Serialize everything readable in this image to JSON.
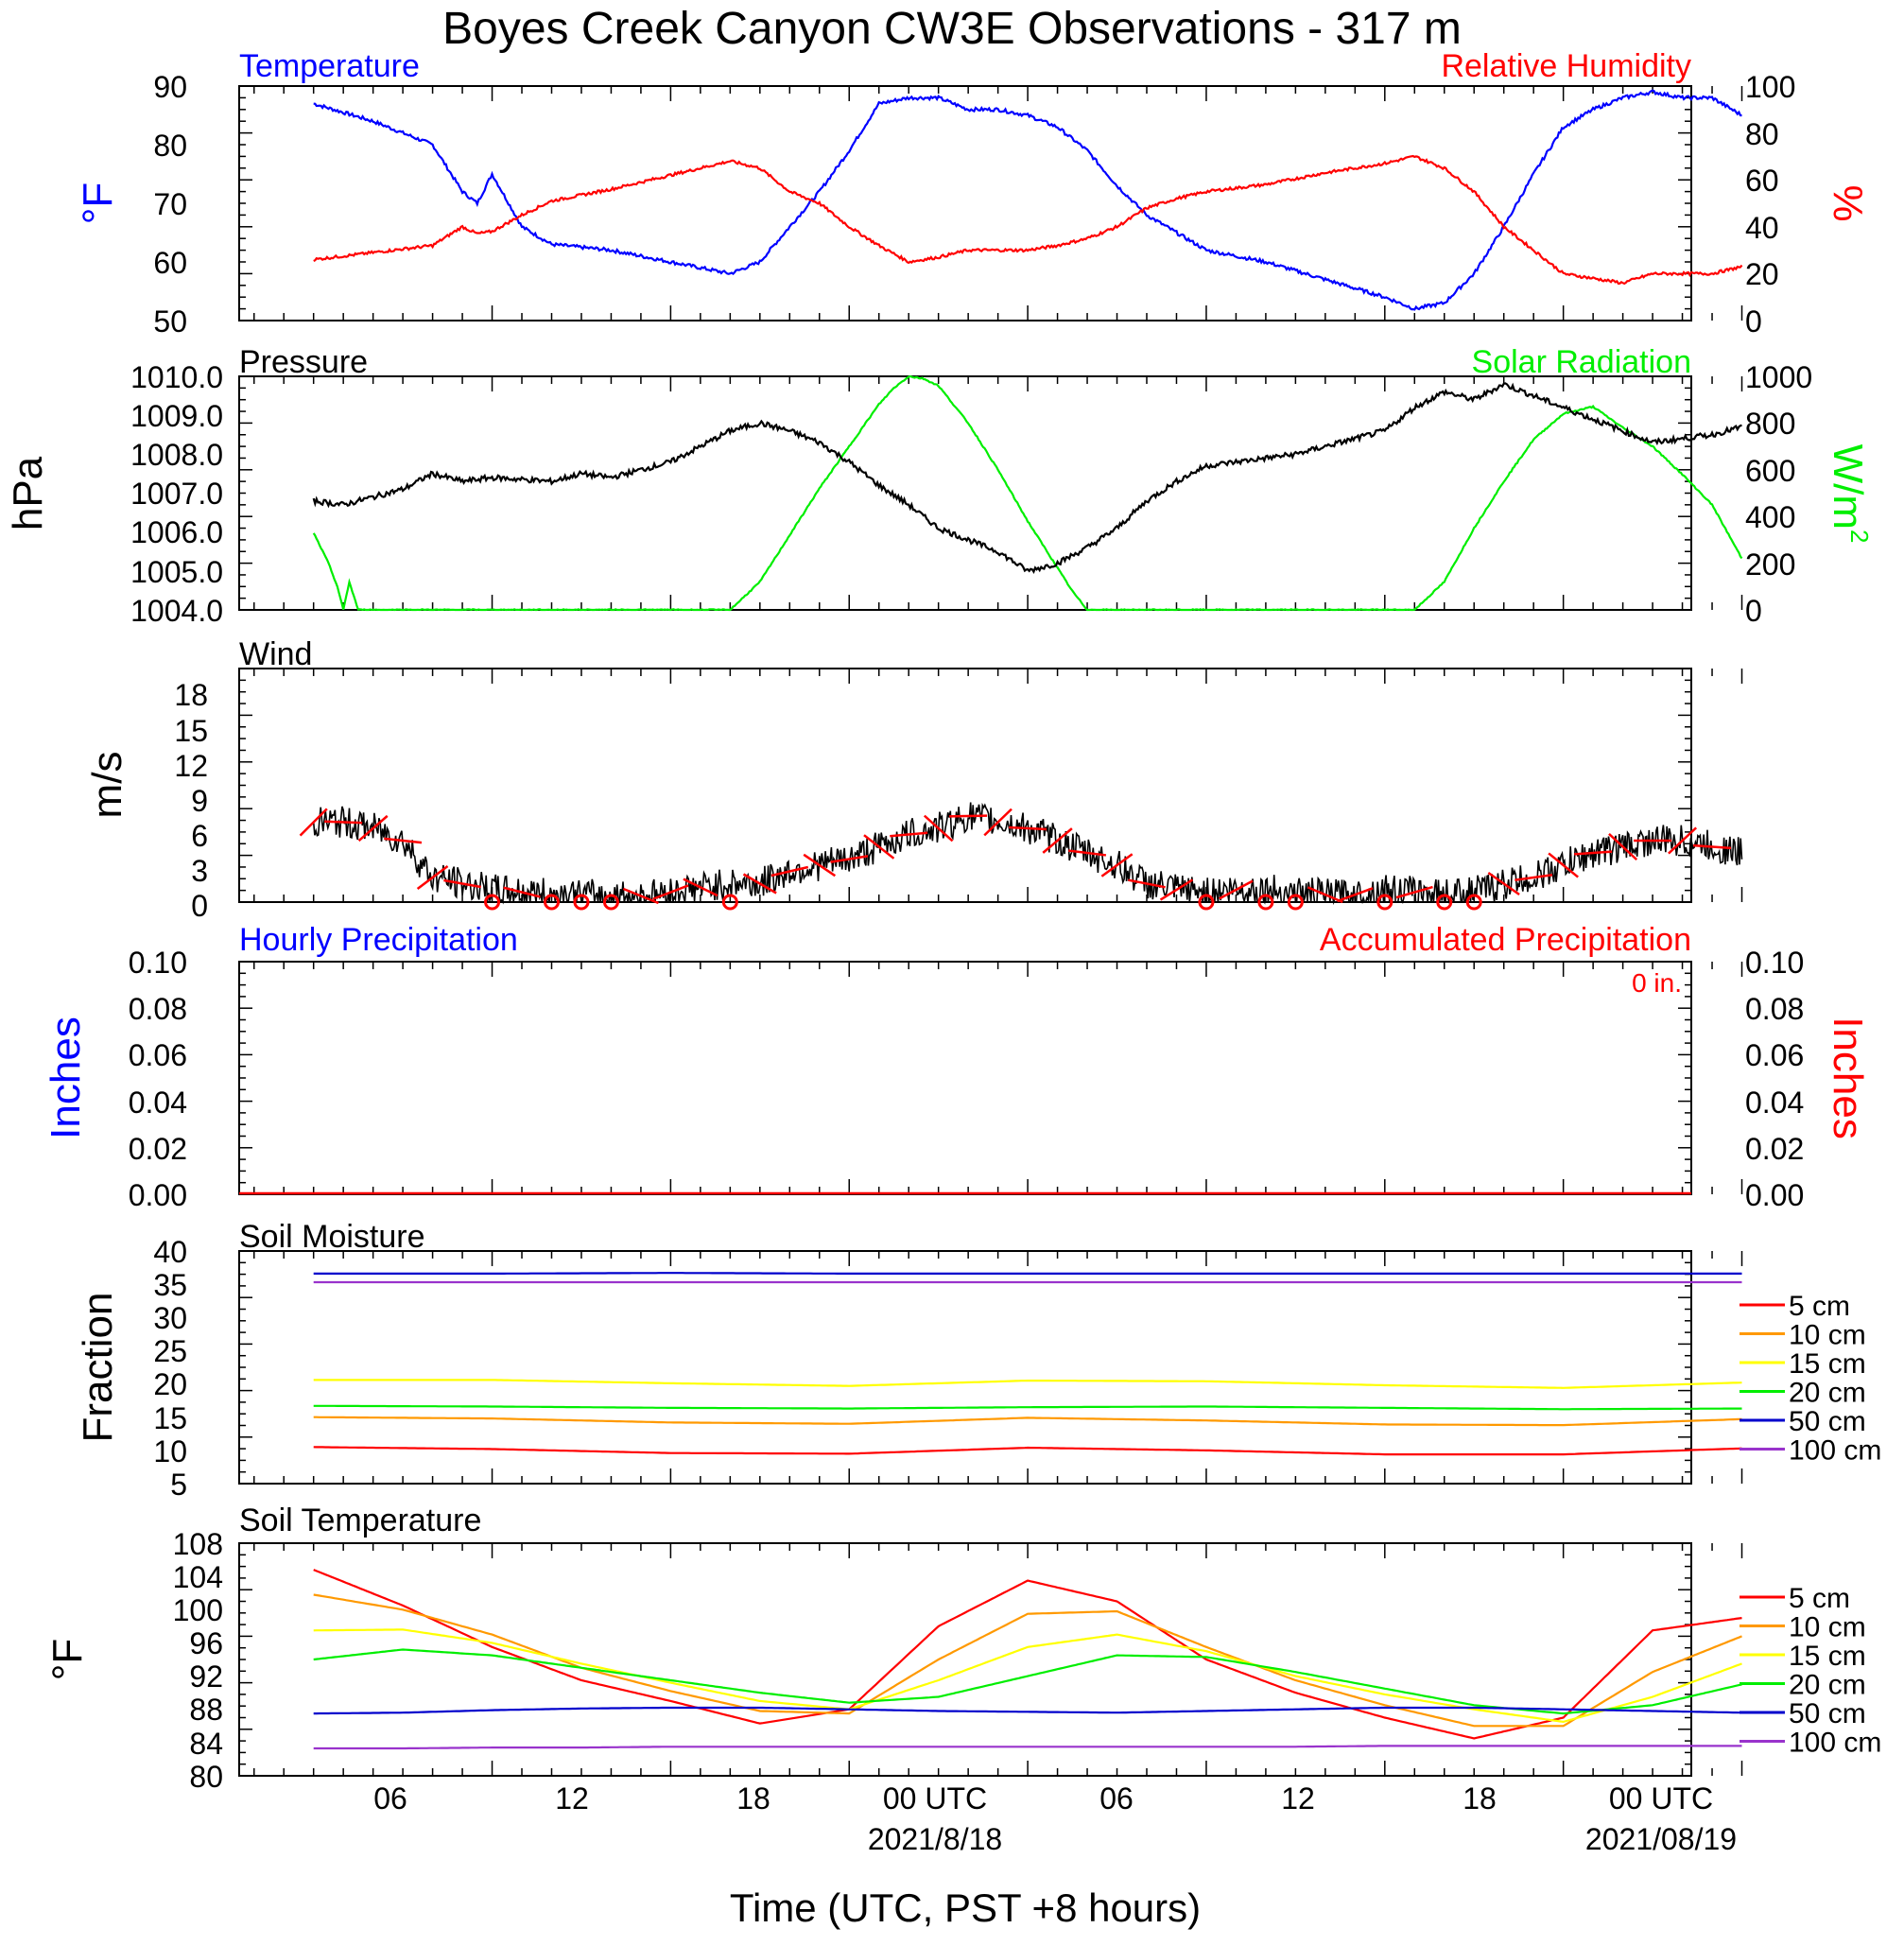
{
  "title": "Boyes Creek Canyon CW3E Observations - 317 m",
  "xlabel": "Time (UTC, PST +8 hours)",
  "x_ticks": [
    "06",
    "12",
    "18",
    "00 UTC",
    "06",
    "12",
    "18",
    "00 UTC"
  ],
  "x_dates": [
    "2021/8/18",
    "2021/08/19"
  ],
  "colors": {
    "blue": "#0000ff",
    "red": "#ff0000",
    "green": "#00ee00",
    "orange": "#ff9900",
    "yellow": "#ffff00",
    "navy": "#0000cc",
    "purple": "#9933cc",
    "black": "#000000"
  },
  "chart_data": [
    {
      "type": "line",
      "title_left": "Temperature",
      "title_right": "Relative Humidity",
      "ylabel_left": "°F",
      "ylabel_right": "%",
      "ylim": [
        50,
        90
      ],
      "ylim_right": [
        0,
        100
      ],
      "y_ticks": [
        "90",
        "80",
        "70",
        "60",
        "50"
      ],
      "y_ticks_right": [
        "100",
        "80",
        "60",
        "40",
        "20",
        "0"
      ],
      "x_hours": [
        0,
        2,
        4,
        5,
        5.5,
        6,
        7,
        8,
        10,
        12,
        14,
        15,
        16,
        17,
        18,
        19,
        20,
        21,
        22,
        23,
        24,
        25,
        26,
        27,
        28,
        29,
        30,
        32,
        34,
        36,
        37,
        38,
        39,
        40,
        41,
        42,
        43,
        44,
        45,
        46,
        47,
        48
      ],
      "series": [
        {
          "name": "Temperature",
          "axis": "left",
          "color": "blue",
          "values": [
            87,
            84,
            80,
            72,
            70,
            75,
            66,
            63,
            62,
            60,
            58,
            60,
            66,
            72,
            79,
            87,
            88,
            88,
            86,
            86,
            85,
            83,
            79,
            73,
            68,
            65,
            62,
            60,
            57,
            54,
            52,
            53,
            58,
            66,
            75,
            83,
            86,
            88,
            89,
            88,
            88,
            85
          ]
        },
        {
          "name": "Relative Humidity",
          "axis": "right",
          "color": "red",
          "values": [
            26,
            29,
            32,
            40,
            37,
            38,
            45,
            51,
            56,
            62,
            68,
            65,
            55,
            50,
            40,
            32,
            25,
            27,
            30,
            30,
            30,
            32,
            35,
            40,
            48,
            52,
            55,
            58,
            63,
            67,
            70,
            65,
            55,
            40,
            30,
            20,
            18,
            16,
            20,
            20,
            20,
            23
          ]
        }
      ]
    },
    {
      "type": "line",
      "title_left": "Pressure",
      "title_right": "Solar Radiation",
      "ylabel_left": "hPa",
      "ylabel_right": "W/m",
      "ylabel_right_sup": "2",
      "ylim": [
        1004.0,
        1010.0
      ],
      "ylim_right": [
        0,
        1000
      ],
      "y_ticks": [
        "1010.0",
        "1009.0",
        "1008.0",
        "1007.0",
        "1006.0",
        "1005.0",
        "1004.0"
      ],
      "y_ticks_right": [
        "1000",
        "800",
        "600",
        "400",
        "200",
        "0"
      ],
      "pressure": {
        "name": "Pressure",
        "color": "black",
        "x_hours": [
          0,
          1,
          3,
          4,
          5,
          6,
          8,
          9,
          10,
          12,
          14,
          15,
          16,
          17,
          18,
          19,
          20,
          21,
          22,
          23,
          24,
          25,
          26,
          27,
          28,
          29,
          30,
          31,
          32,
          33,
          34,
          35,
          36,
          37,
          38,
          39,
          40,
          41,
          42,
          43,
          44,
          45,
          46,
          47,
          48
        ],
        "values": [
          1006.8,
          1006.7,
          1007.1,
          1007.5,
          1007.3,
          1007.4,
          1007.3,
          1007.5,
          1007.4,
          1007.8,
          1008.6,
          1008.8,
          1008.6,
          1008.3,
          1007.8,
          1007.2,
          1006.7,
          1006.1,
          1005.8,
          1005.5,
          1005.0,
          1005.2,
          1005.6,
          1006.1,
          1006.8,
          1007.3,
          1007.7,
          1007.8,
          1007.9,
          1008.0,
          1008.2,
          1008.4,
          1008.6,
          1009.2,
          1009.6,
          1009.4,
          1009.8,
          1009.5,
          1009.2,
          1008.9,
          1008.6,
          1008.3,
          1008.4,
          1008.5,
          1008.7
        ]
      },
      "solar": {
        "name": "Solar Radiation",
        "color": "green",
        "x_hours": [
          0,
          0.5,
          0.8,
          1.0,
          1.2,
          1.5,
          14,
          15,
          16,
          17,
          18,
          19,
          19.5,
          20,
          20.5,
          21,
          22,
          23,
          24,
          25,
          25.5,
          26,
          37,
          38,
          39,
          40,
          41,
          42,
          43,
          44,
          45,
          46,
          47,
          48
        ],
        "values": [
          330,
          200,
          100,
          0,
          120,
          0,
          0,
          120,
          320,
          520,
          700,
          880,
          950,
          1000,
          990,
          960,
          800,
          600,
          380,
          180,
          80,
          0,
          0,
          120,
          350,
          550,
          730,
          840,
          870,
          780,
          700,
          580,
          450,
          220
        ]
      }
    },
    {
      "type": "line",
      "title": "Wind",
      "ylabel": "m/s",
      "ylim": [
        0,
        19
      ],
      "y_ticks": [
        "18",
        "15",
        "12",
        "9",
        "6",
        "3",
        "0"
      ],
      "x_hours": [
        0,
        1,
        2,
        3,
        4,
        5,
        6,
        7,
        8,
        9,
        10,
        11,
        12,
        13,
        14,
        15,
        16,
        17,
        18,
        19,
        20,
        21,
        22,
        23,
        24,
        25,
        26,
        27,
        28,
        29,
        30,
        31,
        32,
        33,
        34,
        35,
        36,
        37,
        38,
        39,
        40,
        41,
        42,
        43,
        44,
        45,
        46,
        47,
        48
      ],
      "values": [
        6.5,
        6.5,
        6.0,
        5.0,
        2.0,
        1.5,
        1.0,
        0.8,
        0.6,
        0.6,
        0.5,
        0.5,
        0.8,
        1.2,
        1.5,
        1.5,
        2.5,
        3.0,
        3.5,
        4.5,
        5.5,
        6.0,
        7.0,
        6.5,
        6.0,
        5.0,
        4.0,
        3.0,
        1.5,
        1.0,
        0.8,
        1.0,
        1.0,
        0.8,
        0.6,
        0.6,
        1.0,
        0.8,
        0.7,
        0.8,
        1.5,
        2.0,
        3.0,
        4.0,
        4.5,
        5.0,
        5.0,
        4.5,
        4.0
      ],
      "calm_hours": [
        6,
        8,
        9,
        10,
        14,
        30,
        32,
        33,
        36,
        38,
        39
      ]
    },
    {
      "type": "bar",
      "title_left": "Hourly Precipitation",
      "title_right": "Accumulated Precipitation",
      "accumulated_label": "0 in.",
      "ylabel_left": "Inches",
      "ylabel_right": "Inches",
      "ylim": [
        0,
        0.1
      ],
      "y_ticks": [
        "0.10",
        "0.08",
        "0.06",
        "0.04",
        "0.02",
        "0.00"
      ],
      "values": [
        0
      ]
    },
    {
      "type": "line",
      "title": "Soil Moisture",
      "ylabel": "Fraction",
      "ylim": [
        5,
        40
      ],
      "y_ticks": [
        "40",
        "35",
        "30",
        "25",
        "20",
        "15",
        "10",
        "5"
      ],
      "legend": [
        "5 cm",
        "10 cm",
        "15 cm",
        "20 cm",
        "50 cm",
        "100 cm"
      ],
      "legend_colors": [
        "red",
        "orange",
        "yellow",
        "green",
        "navy",
        "purple"
      ],
      "x_hours": [
        0,
        6,
        12,
        18,
        24,
        30,
        36,
        42,
        48
      ],
      "series": [
        {
          "name": "5 cm",
          "color": "red",
          "values": [
            10.5,
            10.2,
            9.6,
            9.5,
            10.4,
            10.0,
            9.4,
            9.4,
            10.3
          ]
        },
        {
          "name": "10 cm",
          "color": "orange",
          "values": [
            15.0,
            14.8,
            14.2,
            14.0,
            14.9,
            14.5,
            13.9,
            13.8,
            14.7
          ]
        },
        {
          "name": "15 cm",
          "color": "yellow",
          "values": [
            20.6,
            20.6,
            20.1,
            19.7,
            20.5,
            20.4,
            19.8,
            19.4,
            20.2
          ]
        },
        {
          "name": "20 cm",
          "color": "green",
          "values": [
            16.7,
            16.6,
            16.4,
            16.3,
            16.5,
            16.6,
            16.4,
            16.2,
            16.3
          ]
        },
        {
          "name": "50 cm",
          "color": "navy",
          "values": [
            36.6,
            36.6,
            36.7,
            36.6,
            36.6,
            36.6,
            36.6,
            36.6,
            36.6
          ]
        },
        {
          "name": "100 cm",
          "color": "purple",
          "values": [
            35.3,
            35.3,
            35.3,
            35.3,
            35.3,
            35.3,
            35.3,
            35.3,
            35.3
          ]
        }
      ]
    },
    {
      "type": "line",
      "title": "Soil Temperature",
      "ylabel": "°F",
      "ylim": [
        80,
        108
      ],
      "y_ticks": [
        "108",
        "104",
        "100",
        "96",
        "92",
        "88",
        "84",
        "80"
      ],
      "legend": [
        "5 cm",
        "10 cm",
        "15 cm",
        "20 cm",
        "50 cm",
        "100 cm"
      ],
      "legend_colors": [
        "red",
        "orange",
        "yellow",
        "green",
        "navy",
        "purple"
      ],
      "x_hours": [
        0,
        3,
        6,
        9,
        12,
        15,
        18,
        21,
        24,
        27,
        30,
        33,
        36,
        39,
        42,
        45,
        48
      ],
      "series": [
        {
          "name": "5 cm",
          "color": "red",
          "values": [
            104.8,
            100.5,
            95.5,
            91.5,
            89.0,
            86.3,
            88.0,
            98.0,
            103.5,
            101.0,
            94.0,
            90.0,
            87.0,
            84.5,
            87.0,
            97.5,
            99.0
          ]
        },
        {
          "name": "10 cm",
          "color": "orange",
          "values": [
            101.8,
            100.0,
            97.0,
            93.0,
            90.2,
            87.8,
            87.5,
            94.0,
            99.5,
            99.8,
            95.5,
            91.5,
            88.5,
            86.0,
            86.0,
            92.5,
            96.8
          ]
        },
        {
          "name": "15 cm",
          "color": "yellow",
          "values": [
            97.5,
            97.6,
            96.0,
            93.5,
            91.2,
            89.0,
            88.0,
            91.5,
            95.5,
            97.0,
            95.0,
            92.0,
            89.8,
            88.0,
            86.5,
            89.5,
            93.5
          ]
        },
        {
          "name": "20 cm",
          "color": "green",
          "values": [
            94.0,
            95.2,
            94.5,
            93.0,
            91.5,
            90.0,
            88.8,
            89.5,
            92.0,
            94.5,
            94.3,
            92.5,
            90.5,
            88.5,
            87.5,
            88.5,
            91.0
          ]
        },
        {
          "name": "50 cm",
          "color": "navy",
          "values": [
            87.5,
            87.6,
            87.9,
            88.1,
            88.2,
            88.2,
            88.0,
            87.8,
            87.7,
            87.6,
            87.8,
            88.0,
            88.2,
            88.2,
            88.0,
            87.8,
            87.6
          ]
        },
        {
          "name": "100 cm",
          "color": "purple",
          "values": [
            83.3,
            83.3,
            83.4,
            83.4,
            83.5,
            83.5,
            83.5,
            83.5,
            83.5,
            83.5,
            83.5,
            83.5,
            83.6,
            83.6,
            83.6,
            83.6,
            83.6
          ]
        }
      ]
    }
  ]
}
